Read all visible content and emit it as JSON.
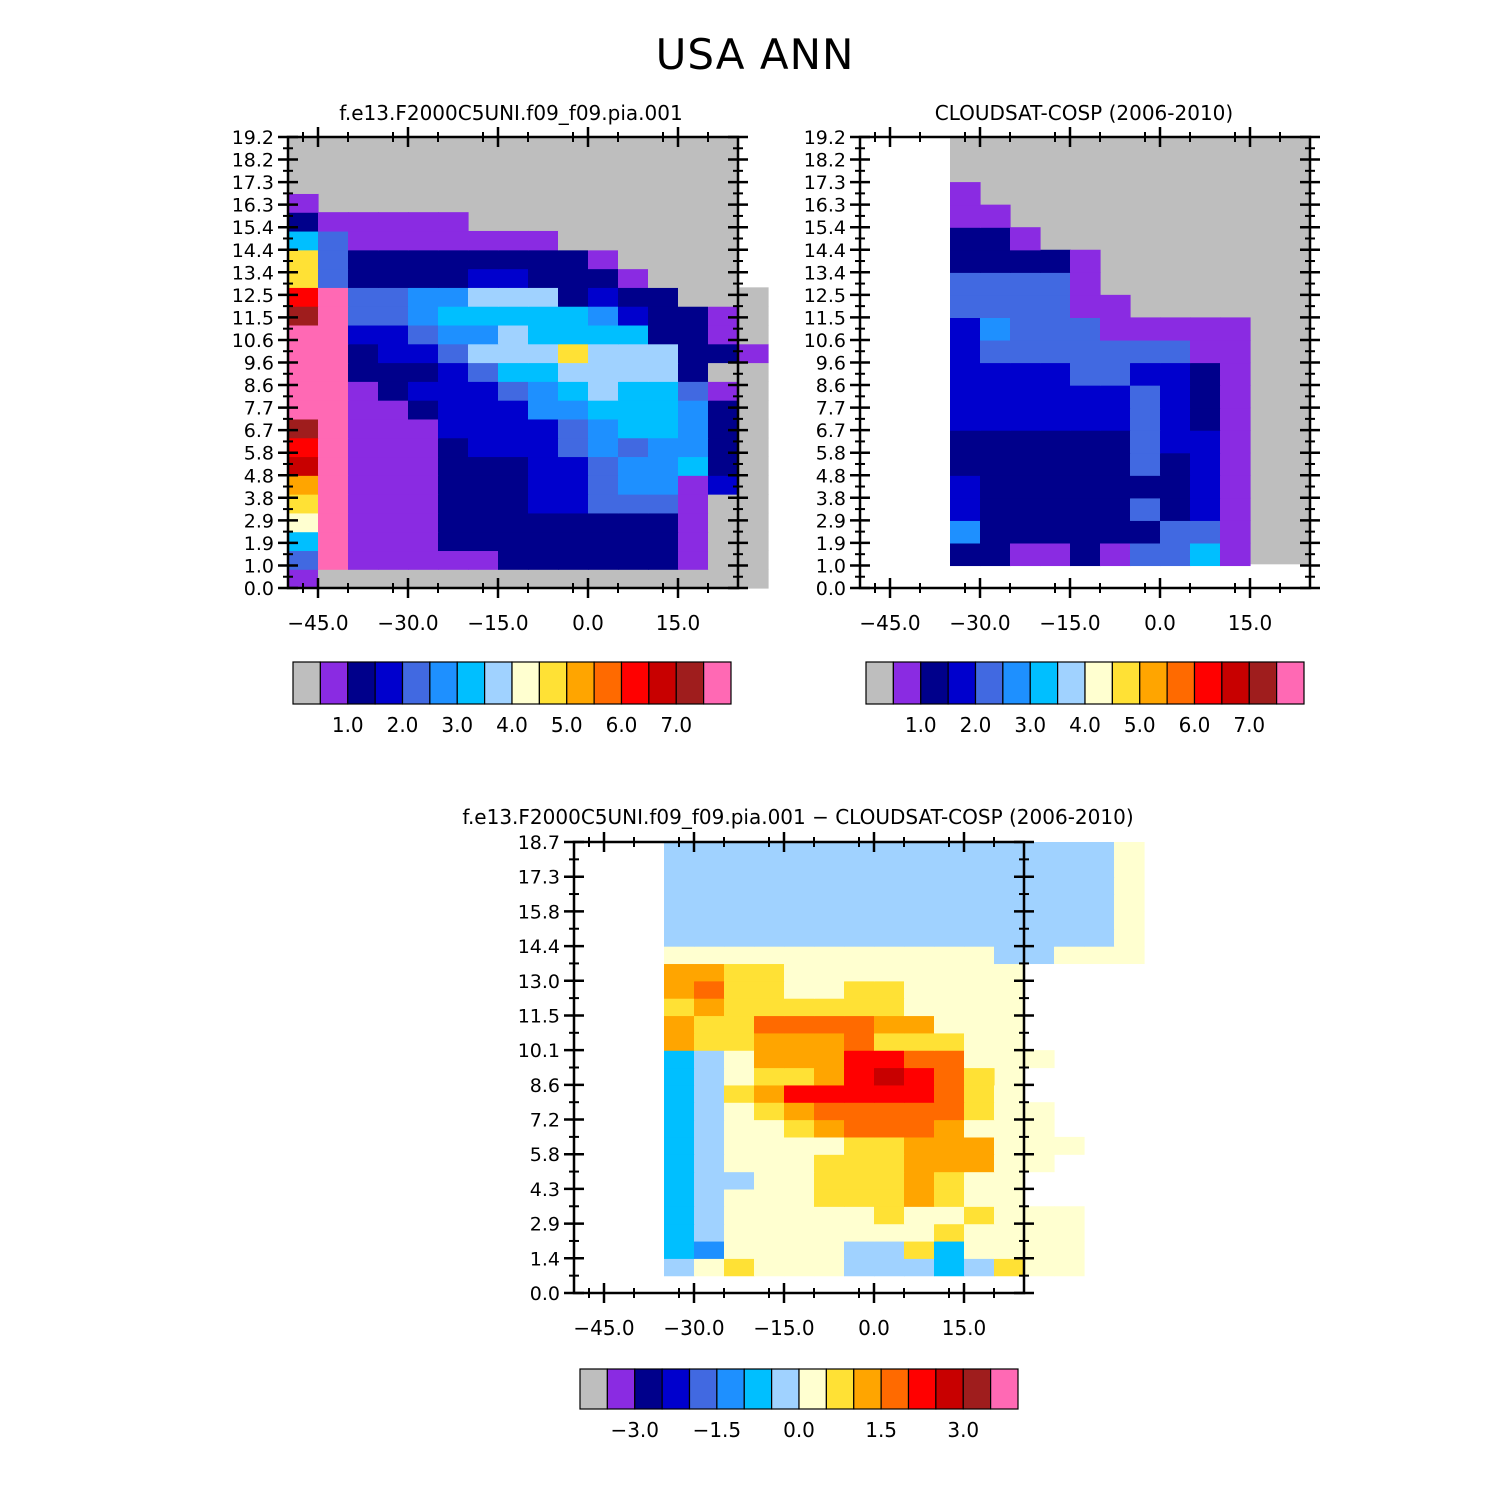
{
  "title": "USA ANN",
  "palette": {
    "full": [
      "#bebebe",
      "#8a2be2",
      "#00008b",
      "#0000cd",
      "#4169e1",
      "#1e90ff",
      "#00bfff",
      "#a0d2ff",
      "#ffffd0",
      "#ffe135",
      "#ffa500",
      "#ff6a00",
      "#ff0000",
      "#c80000",
      "#9f1d1d",
      "#ff69b4"
    ]
  },
  "chart_data": [
    {
      "type": "heatmap",
      "id": "model",
      "title": "f.e13.F2000C5UNI.f09_f09.pia.001",
      "y_tick_labels": [
        "0.0",
        "1.0",
        "1.9",
        "2.9",
        "3.8",
        "4.8",
        "5.8",
        "6.7",
        "7.7",
        "8.6",
        "9.6",
        "10.6",
        "11.5",
        "12.5",
        "13.4",
        "14.4",
        "15.4",
        "16.3",
        "17.3",
        "18.2",
        "19.2"
      ],
      "x_ticks": [
        -45,
        -30,
        -15,
        0,
        15
      ],
      "x_tick_labels": [
        "−45.0",
        "−30.0",
        "−15.0",
        "0.0",
        "15.0"
      ],
      "xlim": [
        -50,
        25
      ],
      "ylim": [
        0,
        20
      ],
      "colorbar_labels": [
        "1.0",
        "2.0",
        "3.0",
        "4.0",
        "5.0",
        "6.0",
        "7.0"
      ],
      "grid": [
        "1000000000000000",
        "4F11111222222100",
        "6F11122222222100",
        "8F11122222222100",
        "9F11122233444100",
        "AF11122233455130",
        "DF11122233455620",
        "CF11123334545520",
        "EF11133334566520",
        "FF11233355666520",
        "FF12333456766410",
        "FF22234667777200",
        "FF23347779777221",
        "FF33455766662210",
        "EF44566666532210",
        "CF44557772322000",
        "942222332221000",
        "9422222222100",
        "64111111100",
        "211111",
        "1",
        "0",
        "0",
        "0"
      ]
    },
    {
      "type": "heatmap",
      "id": "obs",
      "title": "CLOUDSAT-COSP (2006-2010)",
      "y_tick_labels": [
        "0.0",
        "1.0",
        "1.9",
        "2.9",
        "3.8",
        "4.8",
        "5.8",
        "6.7",
        "7.7",
        "8.6",
        "9.6",
        "10.6",
        "11.5",
        "12.5",
        "13.4",
        "14.4",
        "15.4",
        "16.3",
        "17.3",
        "18.2",
        "19.2"
      ],
      "x_ticks": [
        -45,
        -30,
        -15,
        0,
        15
      ],
      "x_tick_labels": [
        "−45.0",
        "−30.0",
        "−15.0",
        "0.0",
        "15.0"
      ],
      "xlim": [
        -50,
        25
      ],
      "ylim": [
        0,
        20
      ],
      "colorbar_labels": [
        "1.0",
        "2.0",
        "3.0",
        "4.0",
        "5.0",
        "6.0",
        "7.0"
      ],
      "grid": [
        "...............",
        "...2211214461",
        "...5222222441",
        "...3222224231",
        "...3222222231",
        "...2222224231",
        "...2222224331",
        "...3333334321",
        "...3333334321",
        "...3333443321",
        "...3444444411",
        "...3544411111",
        "...444411",
        "...44441",
        "...22221",
        "...221",
        "...11",
        "...1",
        "...",
        "..."
      ]
    },
    {
      "type": "heatmap",
      "id": "diff",
      "title": "f.e13.F2000C5UNI.f09_f09.pia.001  −  CLOUDSAT-COSP (2006-2010)",
      "y_tick_labels": [
        "0.0",
        "1.4",
        "2.9",
        "4.3",
        "5.8",
        "7.2",
        "8.6",
        "10.1",
        "11.5",
        "13.0",
        "14.4",
        "15.8",
        "17.3",
        "18.7"
      ],
      "x_ticks": [
        -45,
        -30,
        -15,
        0,
        15
      ],
      "x_tick_labels": [
        "−45.0",
        "−30.0",
        "−15.0",
        "0.0",
        "15.0"
      ],
      "xlim": [
        -50,
        25
      ],
      "ylim": [
        0,
        19.5
      ],
      "colorbar_labels": [
        "−3.0",
        "−1.5",
        "0.0",
        "1.5",
        "3.0"
      ],
      "grid": [
        "...",
        "...78988877767988",
        "...65888877968888",
        "...67888888898888",
        "...67888889889888",
        "...67888999A988",
        "...67788999A988",
        "...67888999AAA88",
        "...67888899AAA888",
        "...67889ABBBA888",
        "...6789ABBBBB988",
        "...679ACCCCCB98",
        "...67899ACDCB9",
        "...678AAACCBB888",
        "...A99AAAB9998",
        "...A99BBBBAA88",
        "...9A9999998",
        "...AB9988998",
        "...AA9988888",
        "...8888888888877888",
        "...7777777777777778",
        "...7777777777777778",
        "...7777777777777778",
        "...7777777777777778",
        "...7777777777777778",
        "...7777777777777778"
      ]
    }
  ]
}
